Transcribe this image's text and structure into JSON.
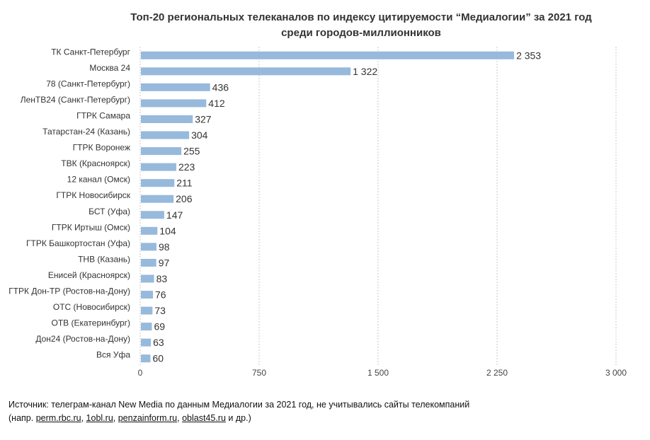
{
  "title": {
    "line1": "Топ-20 региональных телеканалов по индексу цитируемости “Медиалогии” за 2021 год",
    "line2": "среди городов-миллионников"
  },
  "source": {
    "line1": "Источник: телеграм-канал New Media по данным Медиалогии за 2021 год, не учитывались сайты телекомпаний",
    "prefix": "(напр. ",
    "links": [
      "perm.rbc.ru",
      "1obl.ru",
      "penzainform.ru",
      "oblast45.ru"
    ],
    "sep": ", ",
    "suffix": " и др.)"
  },
  "chart_data": {
    "type": "bar",
    "orientation": "horizontal",
    "categories": [
      "ТК Санкт-Петербург",
      "Москва 24",
      "78 (Санкт-Петербург)",
      "ЛенТВ24 (Санкт-Петербург)",
      "ГТРК Самара",
      "Татарстан-24 (Казань)",
      "ГТРК Воронеж",
      "ТВК (Красноярск)",
      "12 канал (Омск)",
      "ГТРК Новосибирск",
      "БСТ (Уфа)",
      "ГТРК Иртыш (Омск)",
      "ГТРК Башкортостан (Уфа)",
      "ТНВ (Казань)",
      "Енисей (Красноярск)",
      "ГТРК Дон-ТР (Ростов-на-Дону)",
      "ОТС (Новосибирск)",
      "ОТВ (Екатеринбург)",
      "Дон24 (Ростов-на-Дону)",
      "Вся Уфа"
    ],
    "values": [
      2353,
      1322,
      436,
      412,
      327,
      304,
      255,
      223,
      211,
      206,
      147,
      104,
      98,
      97,
      83,
      76,
      73,
      69,
      63,
      60
    ],
    "value_labels": [
      "2 353",
      "1 322",
      "436",
      "412",
      "327",
      "304",
      "255",
      "223",
      "211",
      "206",
      "147",
      "104",
      "98",
      "97",
      "83",
      "76",
      "73",
      "69",
      "63",
      "60"
    ],
    "xticks": [
      0,
      750,
      1500,
      2250,
      3000
    ],
    "xtick_labels": [
      "0",
      "750",
      "1 500",
      "2 250",
      "3 000"
    ],
    "xlim": [
      0,
      3000
    ],
    "grid": "vertical dashed",
    "bar_color": "#97b9dc"
  }
}
